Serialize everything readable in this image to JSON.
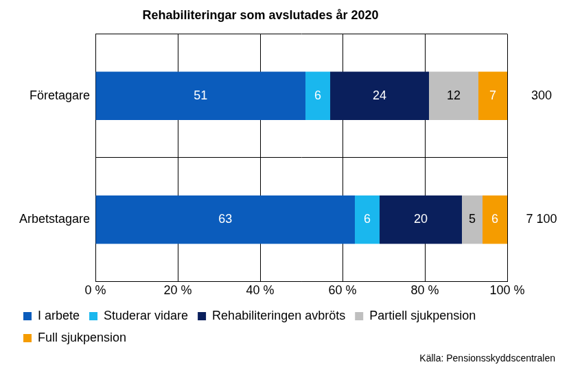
{
  "chart_data": {
    "type": "bar",
    "title": "Rehabiliteringar som avslutades år 2020",
    "orientation": "horizontal",
    "stacked": true,
    "categories": [
      "Företagare",
      "Arbetstagare"
    ],
    "series": [
      {
        "name": "I arbete",
        "color": "#0b5cbc",
        "values": [
          51,
          63
        ]
      },
      {
        "name": "Studerar vidare",
        "color": "#1ab7ee",
        "values": [
          6,
          6
        ]
      },
      {
        "name": "Rehabiliteringen avbröts",
        "color": "#0a1f5c",
        "values": [
          24,
          20
        ]
      },
      {
        "name": "Partiell sjukpension",
        "color": "#bfbfbf",
        "values": [
          12,
          5
        ]
      },
      {
        "name": "Full sjukpension",
        "color": "#f59c00",
        "values": [
          7,
          6
        ]
      }
    ],
    "totals": [
      300,
      7100
    ],
    "total_labels": [
      "300",
      "7 100"
    ],
    "xlim": [
      0,
      100
    ],
    "xticks": [
      {
        "value": 0,
        "label": "0 %"
      },
      {
        "value": 20,
        "label": "20 %"
      },
      {
        "value": 40,
        "label": "40 %"
      },
      {
        "value": 60,
        "label": "60 %"
      },
      {
        "value": 80,
        "label": "80 %"
      },
      {
        "value": 100,
        "label": "100 %"
      }
    ],
    "grid": true,
    "legend": "bottom",
    "data_labels": true,
    "source": "Källa: Pensionsskyddscentralen"
  }
}
